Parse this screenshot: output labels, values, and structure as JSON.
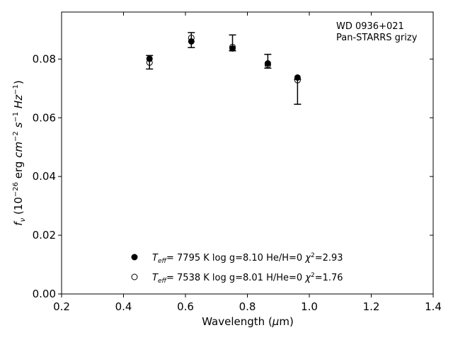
{
  "chart_data": {
    "type": "scatter",
    "annotations": [
      "WD 0936+021",
      "Pan-STARRS grizy"
    ],
    "xlabel": "Wavelength (μm)",
    "ylabel": "f_ν (10^-26 erg cm^-2 s^-1 Hz^-1)",
    "xlim": [
      0.2,
      1.4
    ],
    "ylim": [
      0.0,
      0.096
    ],
    "xticks": [
      0.2,
      0.4,
      0.6,
      0.8,
      1.0,
      1.2,
      1.4
    ],
    "xtick_labels": [
      "0.2",
      "0.4",
      "0.6",
      "0.8",
      "1.0",
      "1.2",
      "1.4"
    ],
    "yticks": [
      0.0,
      0.02,
      0.04,
      0.06,
      0.08
    ],
    "ytick_labels": [
      "0.00",
      "0.02",
      "0.04",
      "0.06",
      "0.08"
    ],
    "grid": false,
    "legend_position": "bottom-center",
    "observed": {
      "x": [
        0.484,
        0.619,
        0.752,
        0.866,
        0.962
      ],
      "y": [
        0.079,
        0.0866,
        0.0836,
        0.0792,
        0.0693
      ],
      "yerr_lower": [
        0.0024,
        0.0027,
        0.0008,
        0.0023,
        0.0047
      ],
      "yerr_upper": [
        0.0022,
        0.0024,
        0.0046,
        0.0024,
        0.0038
      ]
    },
    "series": [
      {
        "legend": "T_eff= 7795 K log g=8.10 He/H=0 χ²=2.93",
        "marker": "filled-circle",
        "x": [
          0.484,
          0.619,
          0.752,
          0.866,
          0.962
        ],
        "y": [
          0.0801,
          0.086,
          0.0836,
          0.0785,
          0.0737
        ]
      },
      {
        "legend": "T_eff= 7538 K log g=8.01 H/He=0 χ²=1.76",
        "marker": "open-circle",
        "x": [
          0.484,
          0.619,
          0.752,
          0.866,
          0.962
        ],
        "y": [
          0.0788,
          0.0872,
          0.0841,
          0.078,
          0.0728
        ]
      }
    ]
  }
}
